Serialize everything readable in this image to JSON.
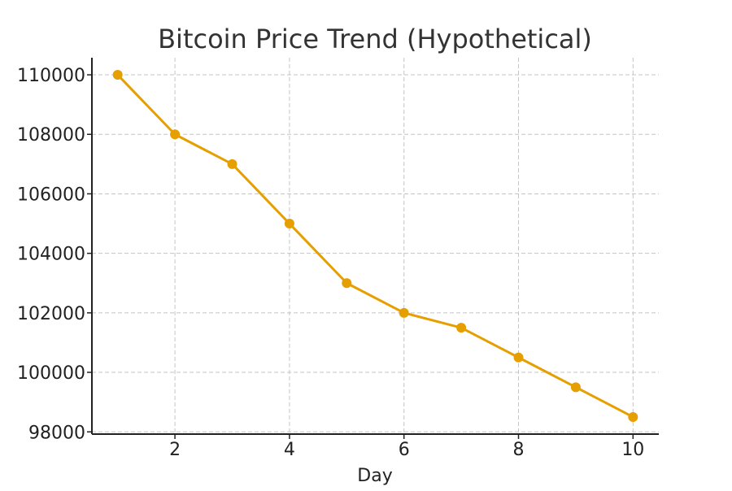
{
  "chart_data": {
    "type": "line",
    "title": "Bitcoin Price Trend (Hypothetical)",
    "xlabel": "Day",
    "ylabel": "",
    "x": [
      1,
      2,
      3,
      4,
      5,
      6,
      7,
      8,
      9,
      10
    ],
    "series": [
      {
        "values": [
          110000,
          108000,
          107000,
          105000,
          103000,
          102000,
          101500,
          100500,
          99500,
          98500
        ],
        "color": "#E69F00"
      }
    ],
    "xlim": [
      0.55,
      10.45
    ],
    "ylim": [
      97925,
      110575
    ],
    "x_ticks": [
      2,
      4,
      6,
      8,
      10
    ],
    "x_tick_labels": [
      "2",
      "4",
      "6",
      "8",
      "10"
    ],
    "y_ticks": [
      98000,
      100000,
      102000,
      104000,
      106000,
      108000,
      110000
    ],
    "y_tick_labels": [
      "98000",
      "100000",
      "102000",
      "104000",
      "106000",
      "108000",
      "110000"
    ],
    "grid": true,
    "markers": true
  }
}
